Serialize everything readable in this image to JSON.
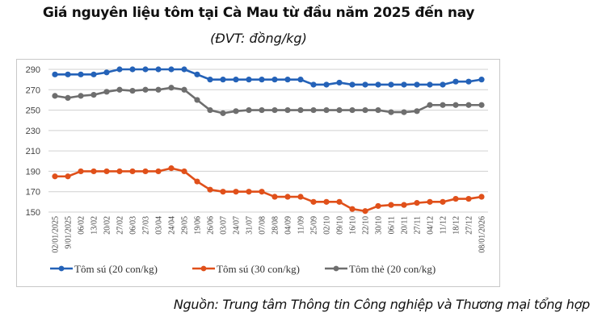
{
  "chart_data": {
    "type": "line",
    "title": "Giá nguyên liệu tôm tại Cà Mau từ đầu năm 2025 đến nay",
    "subtitle": "(ĐVT: đồng/kg)",
    "xlabel": "",
    "ylabel": "",
    "ylim": [
      150,
      290
    ],
    "yticks": [
      150,
      170,
      190,
      210,
      230,
      250,
      270,
      290
    ],
    "grid": true,
    "legend_position": "bottom",
    "categories": [
      "02/01/2025",
      "9/01/2025",
      "06/02",
      "13/02",
      "20/02",
      "27/02",
      "06/03",
      "27/03",
      "03/04",
      "24/04",
      "29/05",
      "19/06",
      "26/06",
      "03/07",
      "24/07",
      "31/07",
      "07/08",
      "28/08",
      "04/09",
      "11/09",
      "25/09",
      "02/10",
      "09/10",
      "16/10",
      "22/10",
      "30/10",
      "06/11",
      "20/11",
      "27/11",
      "04/12",
      "11/12",
      "18/12",
      "27/12",
      "08/01/2026"
    ],
    "series": [
      {
        "name": "Tôm sú (20 con/kg)",
        "color": "#2462b8",
        "values": [
          285,
          285,
          285,
          285,
          287,
          290,
          290,
          290,
          290,
          290,
          290,
          285,
          280,
          280,
          280,
          280,
          280,
          280,
          280,
          280,
          275,
          275,
          277,
          275,
          275,
          275,
          275,
          275,
          275,
          275,
          275,
          278,
          278,
          280
        ]
      },
      {
        "name": "Tôm sú (30 con/kg)",
        "color": "#e0501a",
        "values": [
          185,
          185,
          190,
          190,
          190,
          190,
          190,
          190,
          190,
          193,
          190,
          180,
          172,
          170,
          170,
          170,
          170,
          165,
          165,
          165,
          160,
          160,
          160,
          153,
          151,
          156,
          157,
          157,
          159,
          160,
          160,
          163,
          163,
          165
        ]
      },
      {
        "name": "Tôm thẻ (20 con/kg)",
        "color": "#6e6e6e",
        "values": [
          264,
          262,
          264,
          265,
          268,
          270,
          269,
          270,
          270,
          272,
          270,
          260,
          250,
          247,
          249,
          250,
          250,
          250,
          250,
          250,
          250,
          250,
          250,
          250,
          250,
          250,
          248,
          248,
          249,
          255,
          255,
          255,
          255,
          255
        ]
      }
    ]
  },
  "source": "Nguồn: Trung tâm Thông tin Công nghiệp và Thương mại tổng hợp"
}
